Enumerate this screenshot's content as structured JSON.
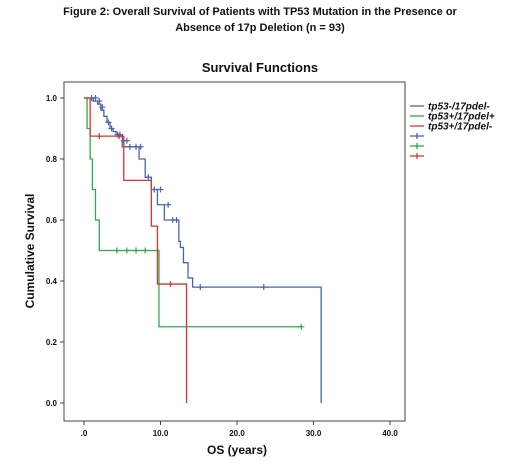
{
  "figure": {
    "title_line1": "Figure 2:  Overall Survival of Patients with TP53 Mutation in the Presence or",
    "title_line2": "Absence of 17p Deletion (n = 93)"
  },
  "chart_data": {
    "type": "line",
    "title": "Survival Functions",
    "xlabel": "OS (years)",
    "ylabel": "Cumulative Survival",
    "xlim": [
      0,
      40
    ],
    "ylim": [
      0,
      1
    ],
    "x_ticks": [
      ".0",
      "10.0",
      "20.0",
      "30.0",
      "40.0"
    ],
    "y_ticks": [
      "0.0",
      "0.2",
      "0.4",
      "0.6",
      "0.8",
      "1.0"
    ],
    "legend_position": "right",
    "series": [
      {
        "name": "tp53-/17pdel-",
        "color": "#4a64b4",
        "steps": [
          [
            0,
            1.0
          ],
          [
            1.2,
            0.99
          ],
          [
            1.8,
            0.98
          ],
          [
            2.2,
            0.96
          ],
          [
            2.6,
            0.94
          ],
          [
            3.0,
            0.92
          ],
          [
            3.4,
            0.9
          ],
          [
            3.8,
            0.89
          ],
          [
            4.2,
            0.88
          ],
          [
            5.0,
            0.84
          ],
          [
            7.2,
            0.8
          ],
          [
            8.0,
            0.74
          ],
          [
            8.8,
            0.7
          ],
          [
            9.6,
            0.65
          ],
          [
            10.5,
            0.6
          ],
          [
            12.4,
            0.53
          ],
          [
            12.6,
            0.51
          ],
          [
            13.0,
            0.46
          ],
          [
            13.6,
            0.41
          ],
          [
            14.2,
            0.38
          ],
          [
            31.0,
            0.0
          ]
        ],
        "end_x": 31.0,
        "censors": [
          [
            1.0,
            1.0
          ],
          [
            1.5,
            1.0
          ],
          [
            2.0,
            0.99
          ],
          [
            2.4,
            0.97
          ],
          [
            3.2,
            0.92
          ],
          [
            3.6,
            0.9
          ],
          [
            4.4,
            0.88
          ],
          [
            4.7,
            0.88
          ],
          [
            5.2,
            0.86
          ],
          [
            5.6,
            0.86
          ],
          [
            6.0,
            0.84
          ],
          [
            6.8,
            0.84
          ],
          [
            7.4,
            0.84
          ],
          [
            8.4,
            0.74
          ],
          [
            9.2,
            0.7
          ],
          [
            10.0,
            0.7
          ],
          [
            11.0,
            0.65
          ],
          [
            11.6,
            0.6
          ],
          [
            12.1,
            0.6
          ],
          [
            15.2,
            0.38
          ],
          [
            23.5,
            0.38
          ]
        ]
      },
      {
        "name": "tp53+/17pdel+",
        "color": "#2fa84f",
        "steps": [
          [
            0,
            1.0
          ],
          [
            0.4,
            0.9
          ],
          [
            0.8,
            0.8
          ],
          [
            1.1,
            0.7
          ],
          [
            1.5,
            0.6
          ],
          [
            2.0,
            0.5
          ],
          [
            9.8,
            0.25
          ]
        ],
        "end_x": 28.4,
        "censors": [
          [
            4.3,
            0.5
          ],
          [
            5.6,
            0.5
          ],
          [
            6.8,
            0.5
          ],
          [
            8.0,
            0.5
          ],
          [
            28.4,
            0.25
          ]
        ]
      },
      {
        "name": "tp53+/17pdel-",
        "color": "#d9352b",
        "steps": [
          [
            0,
            1.0
          ],
          [
            0.8,
            0.875
          ],
          [
            5.2,
            0.73
          ],
          [
            8.8,
            0.58
          ],
          [
            9.6,
            0.39
          ],
          [
            13.4,
            0.0
          ]
        ],
        "end_x": 13.4,
        "censors": [
          [
            2.0,
            0.875
          ],
          [
            4.6,
            0.875
          ],
          [
            11.3,
            0.39
          ]
        ]
      }
    ]
  }
}
